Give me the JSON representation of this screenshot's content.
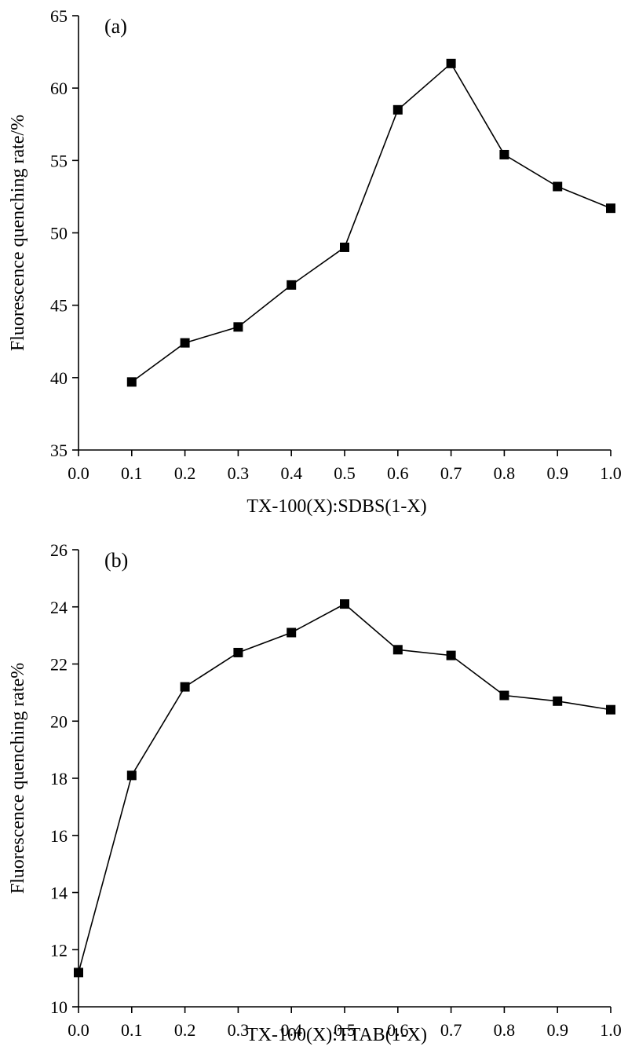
{
  "chart_data": [
    {
      "type": "line",
      "panel_label": "(a)",
      "xlabel": "TX-100(X):SDBS(1-X)",
      "ylabel": "Fluorescence quenching rate/%",
      "xlim": [
        0.0,
        1.0
      ],
      "ylim": [
        35,
        65
      ],
      "x_ticks": [
        "0.0",
        "0.1",
        "0.2",
        "0.3",
        "0.4",
        "0.5",
        "0.6",
        "0.7",
        "0.8",
        "0.9",
        "1.0"
      ],
      "y_ticks": [
        "35",
        "40",
        "45",
        "50",
        "55",
        "60",
        "65"
      ],
      "series": [
        {
          "x": [
            0.1,
            0.2,
            0.3,
            0.4,
            0.5,
            0.6,
            0.7,
            0.8,
            0.9,
            1.0
          ],
          "y": [
            39.7,
            42.4,
            43.5,
            46.4,
            49.0,
            58.5,
            61.7,
            55.4,
            53.2,
            51.7
          ],
          "marker": "square",
          "color": "#000000"
        }
      ]
    },
    {
      "type": "line",
      "panel_label": "(b)",
      "xlabel": "TX-100(X):TTAB(1-X)",
      "ylabel": "Fluorescence quenching rate%",
      "xlim": [
        0.0,
        1.0
      ],
      "ylim": [
        10,
        26
      ],
      "x_ticks": [
        "0.0",
        "0.1",
        "0.2",
        "0.3",
        "0.4",
        "0.5",
        "0.6",
        "0.7",
        "0.8",
        "0.9",
        "1.0"
      ],
      "y_ticks": [
        "10",
        "12",
        "14",
        "16",
        "18",
        "20",
        "22",
        "24",
        "26"
      ],
      "series": [
        {
          "x": [
            0.0,
            0.1,
            0.2,
            0.3,
            0.4,
            0.5,
            0.6,
            0.7,
            0.8,
            0.9,
            1.0
          ],
          "y": [
            11.2,
            18.1,
            21.2,
            22.4,
            23.1,
            24.1,
            22.5,
            22.3,
            20.9,
            20.7,
            20.4
          ],
          "marker": "square",
          "color": "#000000"
        }
      ]
    }
  ]
}
